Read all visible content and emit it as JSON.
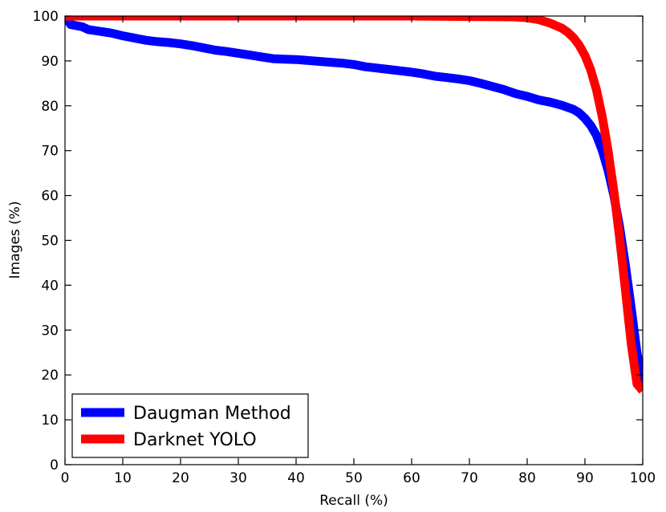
{
  "chart_data": {
    "type": "line",
    "xlabel": "Recall (%)",
    "ylabel": "Images (%)",
    "xlim": [
      0,
      100
    ],
    "ylim": [
      0,
      100
    ],
    "xticks": [
      0,
      10,
      20,
      30,
      40,
      50,
      60,
      70,
      80,
      90,
      100
    ],
    "yticks": [
      0,
      10,
      20,
      30,
      40,
      50,
      60,
      70,
      80,
      90,
      100
    ],
    "grid": false,
    "legend_position": "bottom-left",
    "series": [
      {
        "name": "Daugman Method",
        "color": "#0000ff",
        "x": [
          0,
          1,
          3,
          4,
          6,
          8,
          10,
          12,
          14,
          16,
          18,
          20,
          22,
          24,
          26,
          28,
          30,
          32,
          34,
          36,
          38,
          40,
          42,
          44,
          46,
          48,
          50,
          52,
          54,
          56,
          58,
          60,
          62,
          64,
          66,
          68,
          70,
          72,
          74,
          76,
          78,
          80,
          82,
          84,
          86,
          88,
          89,
          90,
          91,
          92,
          93,
          94,
          95,
          96,
          97,
          98,
          99,
          100
        ],
        "y": [
          100,
          98.1,
          97.6,
          97,
          96.6,
          96.2,
          95.6,
          95.1,
          94.6,
          94.3,
          94.1,
          93.8,
          93.4,
          92.9,
          92.4,
          92.1,
          91.7,
          91.3,
          90.9,
          90.5,
          90.4,
          90.3,
          90.1,
          89.9,
          89.7,
          89.5,
          89.2,
          88.7,
          88.4,
          88.1,
          87.8,
          87.5,
          87.1,
          86.6,
          86.3,
          86,
          85.6,
          85,
          84.3,
          83.6,
          82.7,
          82.1,
          81.3,
          80.8,
          80.1,
          79.2,
          78.4,
          77.2,
          75.6,
          73.4,
          70,
          65.6,
          60,
          53,
          44.5,
          35,
          25,
          18
        ]
      },
      {
        "name": "Darknet YOLO",
        "color": "#ff0000",
        "x": [
          0,
          10,
          20,
          30,
          40,
          50,
          60,
          70,
          78,
          80,
          82,
          84,
          86,
          87,
          88,
          89,
          90,
          91,
          92,
          93,
          94,
          95,
          96,
          97,
          98,
          99,
          100
        ],
        "y": [
          100,
          100,
          100,
          100,
          100,
          100,
          100,
          99.9,
          99.8,
          99.6,
          99.2,
          98.4,
          97.3,
          96.4,
          95.2,
          93.5,
          91.2,
          88,
          83.5,
          77.5,
          70,
          61,
          50.5,
          39,
          27,
          18,
          16.5
        ]
      }
    ]
  }
}
